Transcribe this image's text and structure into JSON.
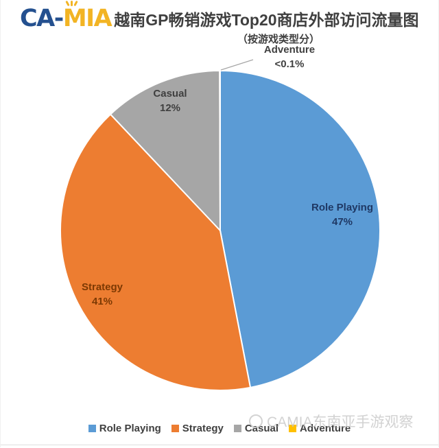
{
  "header": {
    "logo": {
      "part1": "CA-",
      "part2": "MIA"
    },
    "title": "越南GP畅销游戏Top20商店外部访问流量图",
    "subtitle": "（按游戏类型分）"
  },
  "chart_data": {
    "type": "pie",
    "title": "越南GP畅销游戏Top20商店外部访问流量图（按游戏类型分）",
    "unit": "percent",
    "start_angle_deg": 0,
    "direction": "clockwise",
    "slices": [
      {
        "name": "Role Playing",
        "value": 47,
        "value_label": "47%",
        "color": "#5B9BD5",
        "label_color": "#1F3864",
        "label_position": "inside"
      },
      {
        "name": "Strategy",
        "value": 41,
        "value_label": "41%",
        "color": "#ED7D31",
        "label_color": "#7C3903",
        "label_position": "inside"
      },
      {
        "name": "Casual",
        "value": 12,
        "value_label": "12%",
        "color": "#A6A6A6",
        "label_color": "#3F3F3F",
        "label_position": "inside"
      },
      {
        "name": "Adventure",
        "value": 0.05,
        "value_label": "<0.1%",
        "color": "#FFC000",
        "label_color": "#404040",
        "label_position": "outside-callout"
      }
    ],
    "legend": {
      "position": "bottom",
      "entries": [
        "Role Playing",
        "Strategy",
        "Casual",
        "Adventure"
      ]
    }
  },
  "watermark": {
    "text": "CAMIA东南亚手游观察"
  }
}
